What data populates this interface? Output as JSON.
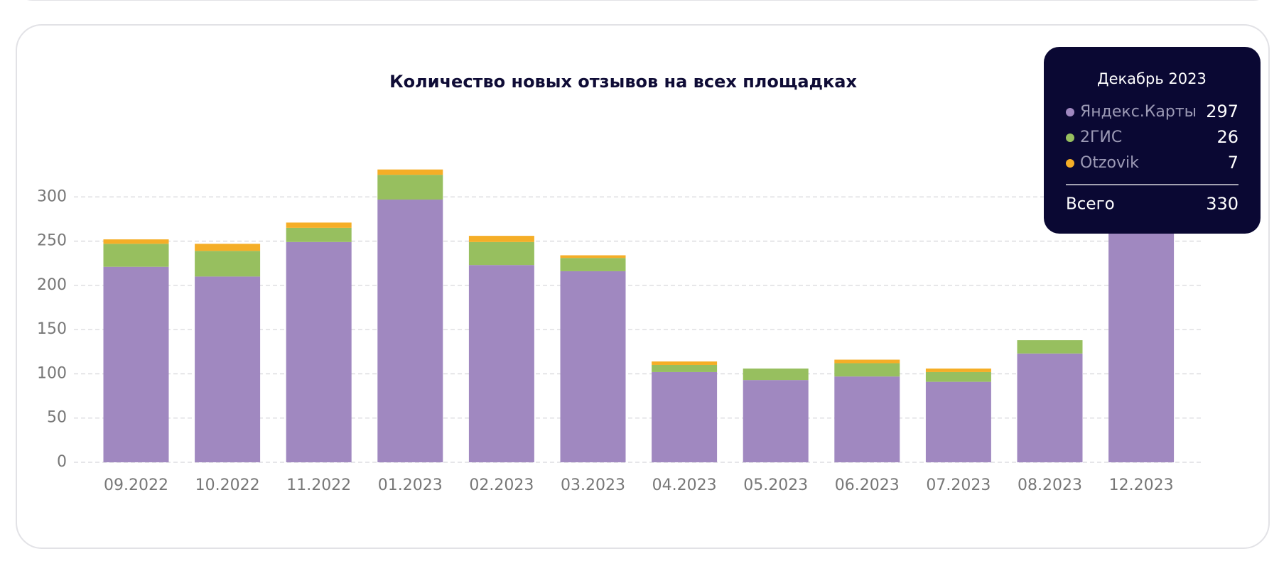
{
  "chart_data": {
    "type": "stacked_bar",
    "title": "Количество новых отзывов на всех площадках",
    "categories": [
      "09.2022",
      "10.2022",
      "11.2022",
      "01.2023",
      "02.2023",
      "03.2023",
      "04.2023",
      "05.2023",
      "06.2023",
      "07.2023",
      "08.2023",
      "12.2023"
    ],
    "series": [
      {
        "name": "Яндекс.Карты",
        "color": "#a088c0",
        "values": [
          221,
          210,
          249,
          297,
          223,
          216,
          102,
          93,
          97,
          91,
          123,
          297
        ]
      },
      {
        "name": "2ГИС",
        "color": "#97bf5f",
        "values": [
          26,
          29,
          16,
          28,
          26,
          15,
          8,
          13,
          15,
          11,
          15,
          26
        ]
      },
      {
        "name": "Otzovik",
        "color": "#f5ae27",
        "values": [
          5,
          8,
          6,
          6,
          7,
          3,
          4,
          0,
          4,
          4,
          0,
          7
        ]
      }
    ],
    "ylim": [
      0,
      350
    ],
    "yticks": [
      0,
      50,
      100,
      150,
      200,
      250,
      300
    ],
    "grid": true,
    "tooltip": {
      "title": "Декабрь 2023",
      "index": 11,
      "total_label": "Всего",
      "total": 330
    }
  }
}
